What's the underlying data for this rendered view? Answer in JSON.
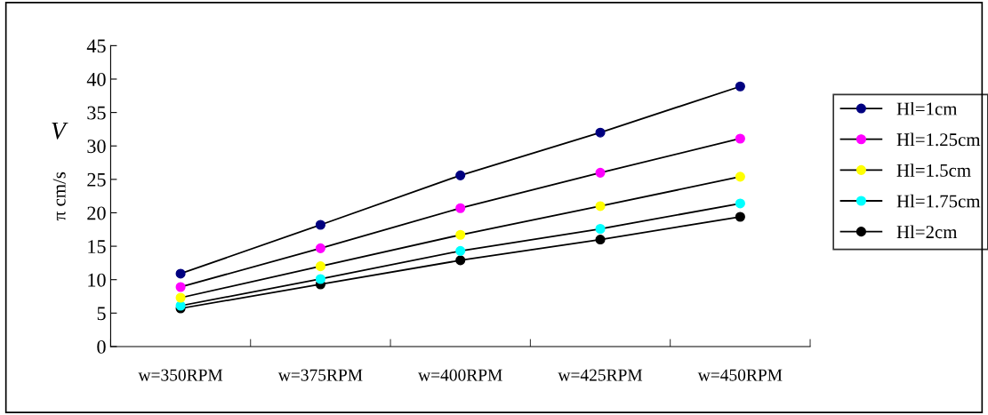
{
  "chart_data": {
    "type": "line",
    "categories": [
      "w=350RPM",
      "w=375RPM",
      "w=400RPM",
      "w=425RPM",
      "w=450RPM"
    ],
    "series": [
      {
        "name": "Hl=1cm",
        "color": "#000080",
        "values": [
          10.9,
          18.2,
          25.6,
          32.0,
          38.9
        ]
      },
      {
        "name": "Hl=1.25cm",
        "color": "#ff00ff",
        "values": [
          8.9,
          14.7,
          20.7,
          26.0,
          31.1
        ]
      },
      {
        "name": "Hl=1.5cm",
        "color": "#ffff00",
        "values": [
          7.3,
          12.0,
          16.7,
          21.0,
          25.4
        ]
      },
      {
        "name": "Hl=1.75cm",
        "color": "#00ffff",
        "values": [
          6.1,
          10.1,
          14.3,
          17.6,
          21.4
        ]
      },
      {
        "name": "Hl=2cm",
        "color": "#000000",
        "values": [
          5.7,
          9.3,
          12.9,
          16.0,
          19.4
        ]
      }
    ],
    "ylabel": "π cm/s",
    "annotations": [
      "V"
    ],
    "ylim": [
      0,
      45
    ],
    "yticks": [
      0,
      5,
      10,
      15,
      20,
      25,
      30,
      35,
      40,
      45
    ],
    "grid": false,
    "legend": "right",
    "marker": "circle",
    "line_style": "solid"
  }
}
